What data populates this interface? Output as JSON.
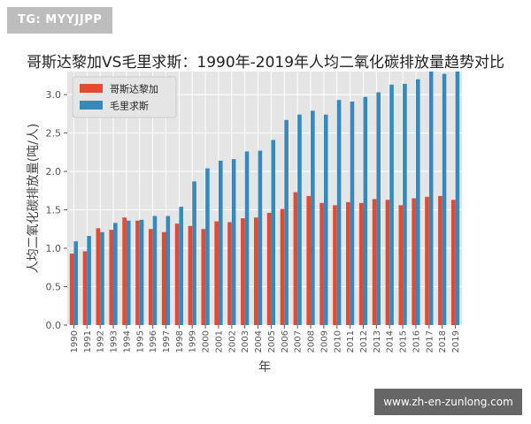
{
  "watermark_top": "TG: MYYJJPP",
  "watermark_bottom": "www.zh-en-zunlong.com",
  "colors": {
    "costa_rica": "#e24a33",
    "monaco": "#348abd",
    "plot_bg": "#e5e5e5",
    "grid": "#ffffff"
  },
  "chart_data": {
    "type": "bar",
    "title": "哥斯达黎加VS毛里求斯：1990年-2019年人均二氧化碳排放量趋势对比",
    "xlabel": "年",
    "ylabel": "人均二氧化碳排放量(吨/人)",
    "ylim": [
      0,
      3.3
    ],
    "yticks": [
      0.0,
      0.5,
      1.0,
      1.5,
      2.0,
      2.5,
      3.0
    ],
    "ytick_labels": [
      "0.0",
      "0.5",
      "1.0",
      "1.5",
      "2.0",
      "2.5",
      "3.0"
    ],
    "legend_position": "top-left",
    "grid": true,
    "categories": [
      "1990",
      "1991",
      "1992",
      "1993",
      "1994",
      "1995",
      "1996",
      "1997",
      "1998",
      "1999",
      "2000",
      "2001",
      "2002",
      "2003",
      "2004",
      "2005",
      "2006",
      "2007",
      "2008",
      "2009",
      "2010",
      "2011",
      "2012",
      "2013",
      "2014",
      "2015",
      "2016",
      "2017",
      "2018",
      "2019"
    ],
    "series": [
      {
        "name": "哥斯达黎加",
        "values": [
          0.93,
          0.96,
          1.26,
          1.24,
          1.4,
          1.36,
          1.25,
          1.21,
          1.32,
          1.29,
          1.25,
          1.35,
          1.34,
          1.39,
          1.4,
          1.46,
          1.51,
          1.73,
          1.68,
          1.59,
          1.56,
          1.6,
          1.59,
          1.64,
          1.63,
          1.56,
          1.65,
          1.67,
          1.68,
          1.63
        ]
      },
      {
        "name": "毛里求斯",
        "values": [
          1.09,
          1.16,
          1.21,
          1.33,
          1.36,
          1.37,
          1.42,
          1.42,
          1.54,
          1.87,
          2.04,
          2.14,
          2.16,
          2.26,
          2.27,
          2.41,
          2.67,
          2.74,
          2.79,
          2.74,
          2.93,
          2.91,
          2.97,
          3.03,
          3.13,
          3.14,
          3.2,
          3.3,
          3.27,
          3.3
        ]
      }
    ]
  }
}
